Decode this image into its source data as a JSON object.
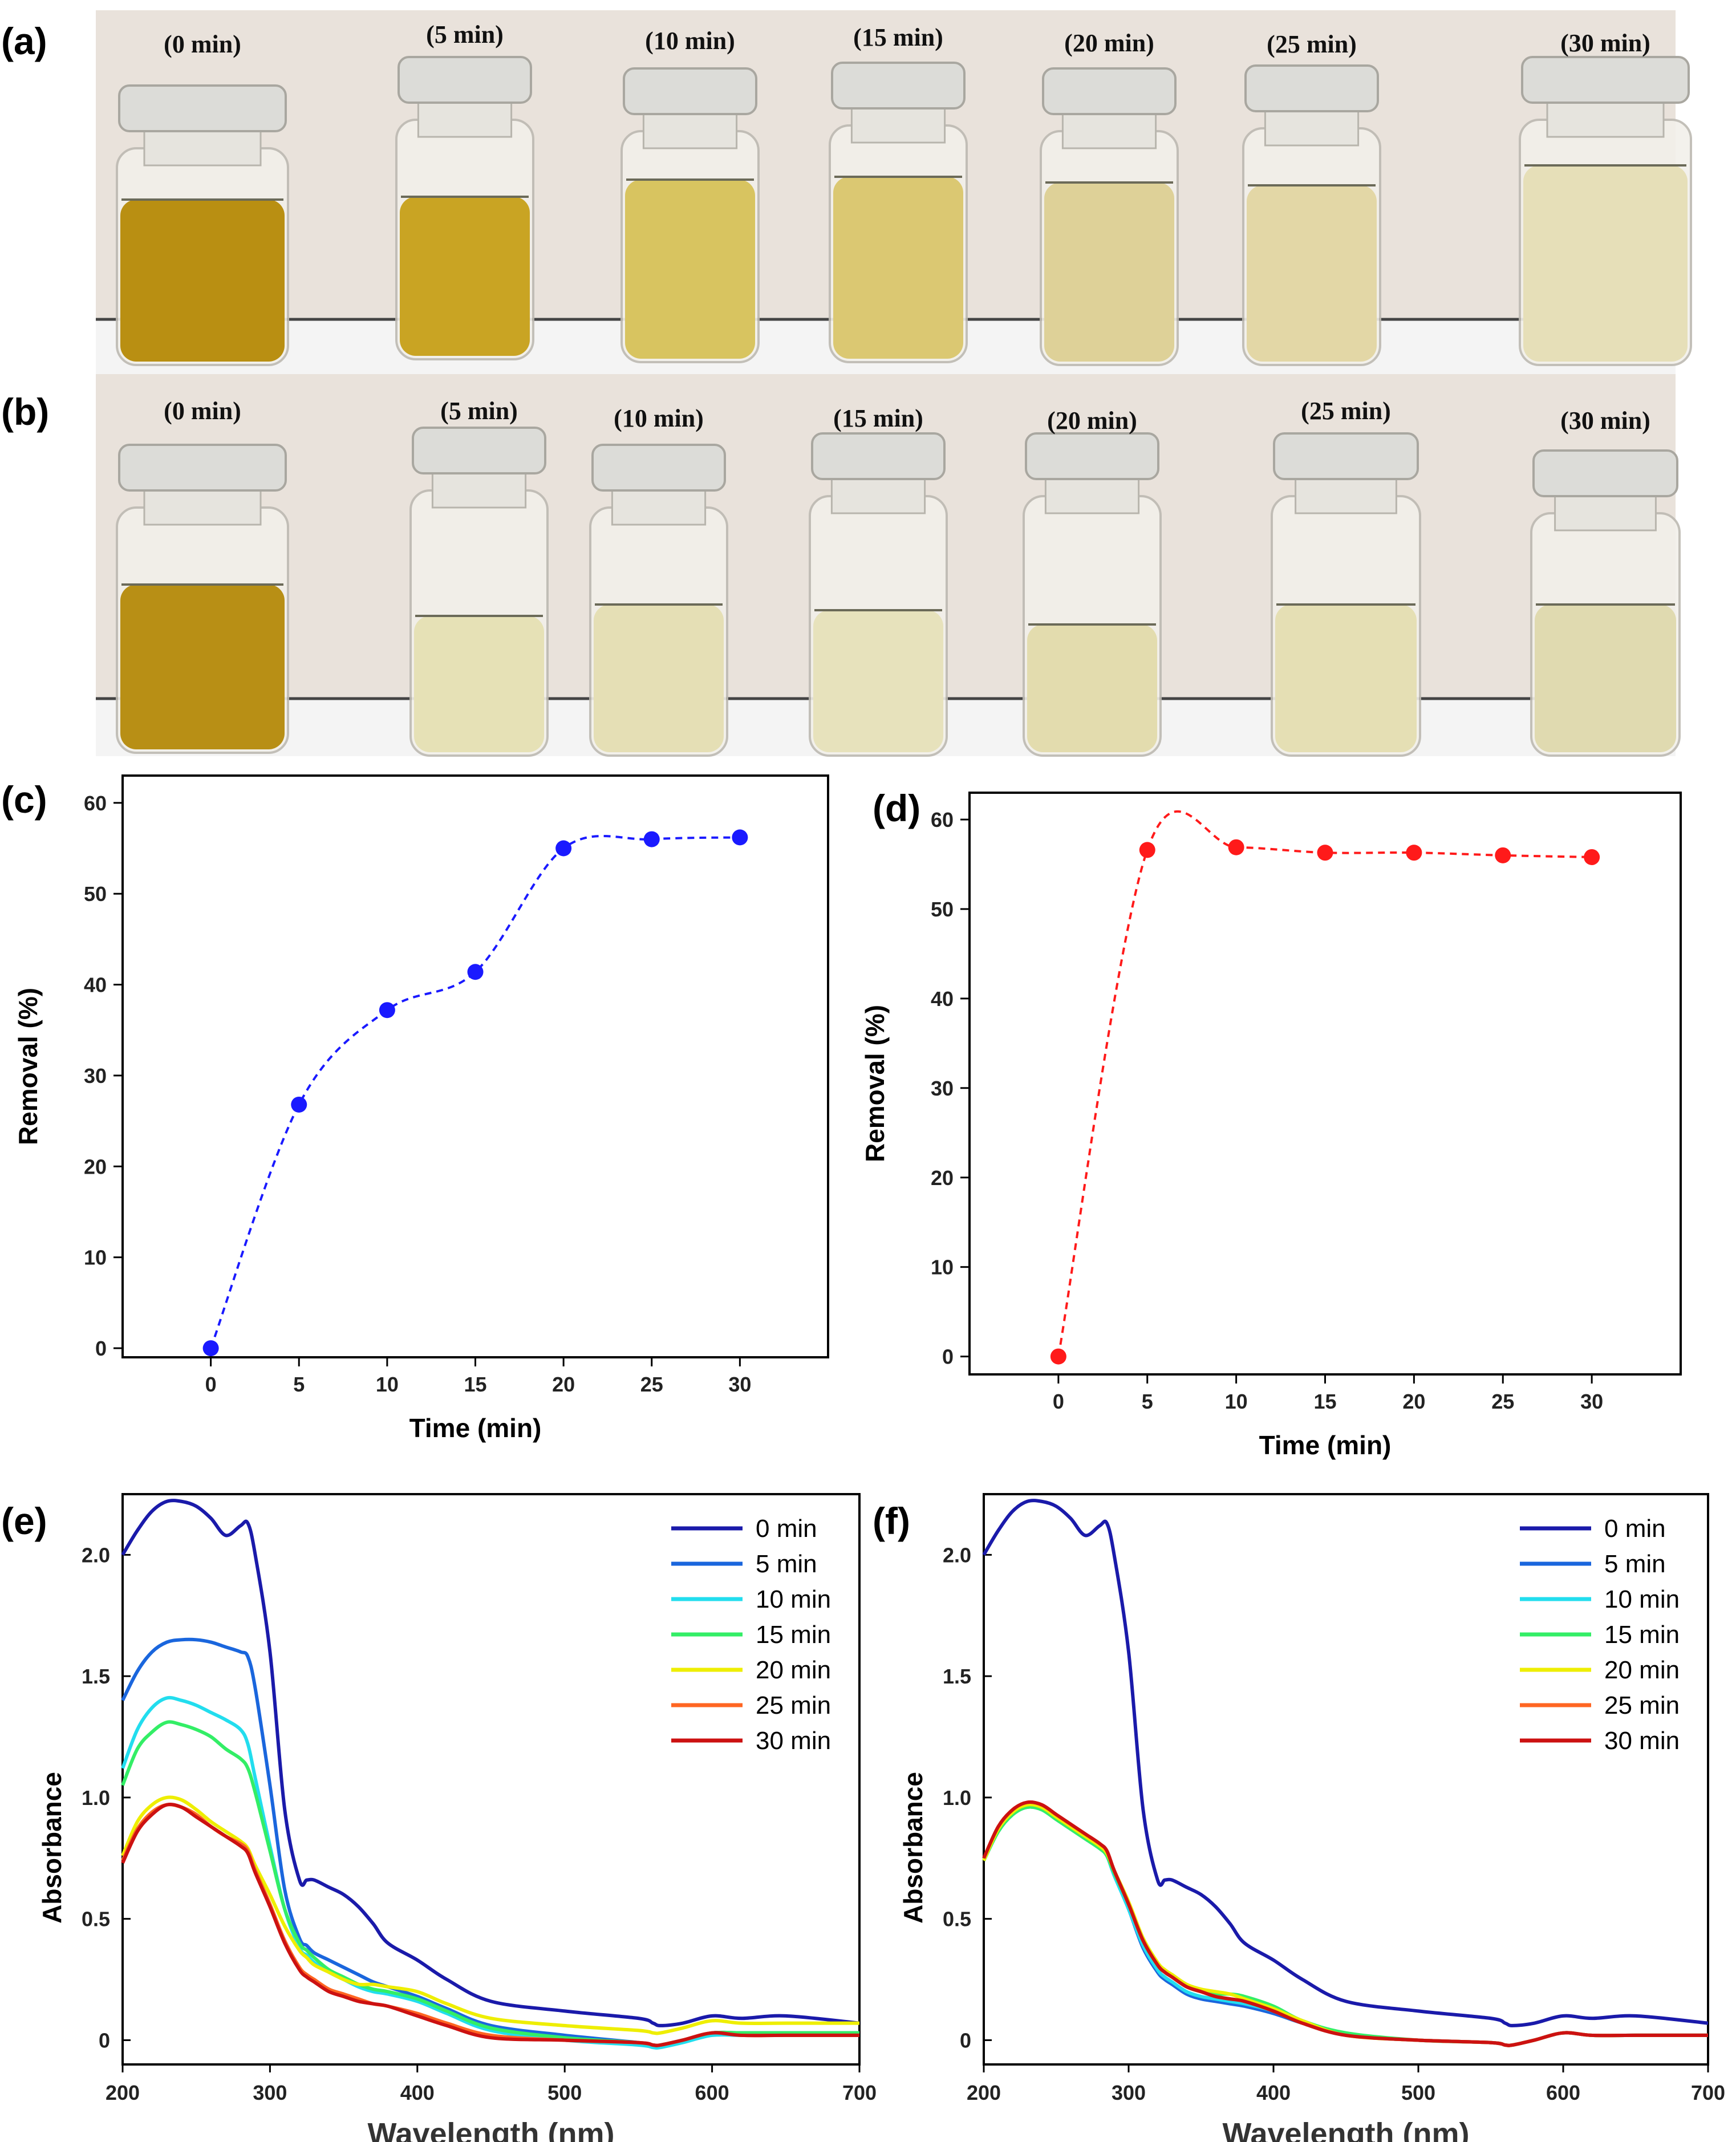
{
  "panel_labels": {
    "a": "(a)",
    "b": "(b)",
    "c": "(c)",
    "d": "(d)",
    "e": "(e)",
    "f": "(f)"
  },
  "colors": {
    "photo_bg": "#e9e2db",
    "shelf": "#f4f4f4",
    "cap": "#dcdcd8",
    "liquid_a": [
      "#b98f12",
      "#c9a423",
      "#d8c460",
      "#dbc872",
      "#ded198",
      "#e3d7a6",
      "#e6dfb8"
    ],
    "liquid_b": [
      "#b88f15",
      "#e6e1b6",
      "#e5dfb5",
      "#e7e2bc",
      "#e3dcae",
      "#e5dfb4",
      "#e0dab0"
    ],
    "series_c": "#1a1aff",
    "series_d": "#ff1a1a"
  },
  "photo_a": {
    "vials": [
      "(0 min)",
      "(5 min)",
      "(10 min)",
      "(15 min)",
      "(20 min)",
      "(25 min)",
      "(30 min)"
    ]
  },
  "photo_b": {
    "vials": [
      "(0 min)",
      "(5 min)",
      "(10 min)",
      "(15 min)",
      "(20 min)",
      "(25 min)",
      "(30 min)"
    ]
  },
  "chart_data": [
    {
      "panel": "(c)",
      "type": "scatter",
      "title": "",
      "xlabel": "Time (min)",
      "ylabel": "Removal (%)",
      "x": [
        0,
        5,
        10,
        15,
        20,
        25,
        30
      ],
      "y": [
        0,
        26.8,
        37.2,
        41.4,
        55.0,
        56.0,
        56.2
      ],
      "xlim": [
        -5,
        35
      ],
      "ylim": [
        -1,
        63
      ],
      "xticks": [
        0,
        5,
        10,
        15,
        20,
        25,
        30
      ],
      "yticks": [
        0,
        10,
        20,
        30,
        40,
        50,
        60
      ],
      "line": "dashed smooth spline",
      "color": "#1a1aff"
    },
    {
      "panel": "(d)",
      "type": "scatter",
      "title": "",
      "xlabel": "Time (min)",
      "ylabel": "Removal (%)",
      "x": [
        0,
        5,
        10,
        15,
        20,
        25,
        30
      ],
      "y": [
        0,
        56.6,
        56.9,
        56.3,
        56.3,
        56.0,
        55.8
      ],
      "xlim": [
        -5,
        35
      ],
      "ylim": [
        -2,
        63
      ],
      "xticks": [
        0,
        5,
        10,
        15,
        20,
        25,
        30
      ],
      "yticks": [
        0,
        10,
        20,
        30,
        40,
        50,
        60
      ],
      "line": "dashed smooth spline",
      "color": "#ff1a1a"
    },
    {
      "panel": "(e)",
      "type": "line",
      "xlabel": "Wavelength (nm)",
      "ylabel": "Absorbance",
      "xlim": [
        200,
        700
      ],
      "ylim": [
        -0.1,
        2.25
      ],
      "xticks": [
        200,
        300,
        400,
        500,
        600,
        700
      ],
      "yticks": [
        0,
        0.5,
        1.0,
        1.5,
        2.0
      ],
      "ytick_labels": [
        "0",
        "0.5",
        "1.0",
        "1.5",
        "2.0"
      ],
      "legend_position": "top-right",
      "x": [
        200,
        210,
        220,
        230,
        240,
        250,
        260,
        270,
        280,
        285,
        290,
        300,
        310,
        320,
        325,
        330,
        340,
        350,
        360,
        370,
        380,
        400,
        420,
        450,
        500,
        550,
        560,
        565,
        580,
        600,
        620,
        650,
        700
      ],
      "series": [
        {
          "name": "0 min",
          "color": "#1a1aaa",
          "values": [
            2.0,
            2.1,
            2.18,
            2.22,
            2.22,
            2.2,
            2.15,
            2.08,
            2.12,
            2.13,
            2.0,
            1.6,
            0.95,
            0.66,
            0.66,
            0.66,
            0.63,
            0.6,
            0.55,
            0.48,
            0.4,
            0.33,
            0.25,
            0.16,
            0.12,
            0.09,
            0.07,
            0.06,
            0.07,
            0.1,
            0.09,
            0.1,
            0.07
          ]
        },
        {
          "name": "5 min",
          "color": "#1a66dd",
          "values": [
            1.4,
            1.52,
            1.6,
            1.64,
            1.65,
            1.65,
            1.64,
            1.62,
            1.6,
            1.58,
            1.45,
            1.05,
            0.62,
            0.42,
            0.39,
            0.36,
            0.33,
            0.3,
            0.27,
            0.24,
            0.22,
            0.18,
            0.13,
            0.06,
            0.02,
            -0.01,
            -0.02,
            -0.02,
            0.0,
            0.03,
            0.03,
            0.03,
            0.03
          ]
        },
        {
          "name": "10 min",
          "color": "#22ddee",
          "values": [
            1.12,
            1.28,
            1.37,
            1.41,
            1.4,
            1.38,
            1.35,
            1.32,
            1.28,
            1.22,
            1.08,
            0.8,
            0.54,
            0.38,
            0.35,
            0.32,
            0.28,
            0.25,
            0.22,
            0.2,
            0.19,
            0.16,
            0.11,
            0.04,
            0.0,
            -0.02,
            -0.03,
            -0.03,
            -0.01,
            0.02,
            0.02,
            0.02,
            0.02
          ]
        },
        {
          "name": "15 min",
          "color": "#33ee66",
          "values": [
            1.05,
            1.2,
            1.27,
            1.31,
            1.3,
            1.28,
            1.25,
            1.2,
            1.16,
            1.12,
            1.02,
            0.78,
            0.54,
            0.4,
            0.37,
            0.34,
            0.29,
            0.26,
            0.23,
            0.21,
            0.2,
            0.17,
            0.12,
            0.05,
            0.01,
            -0.01,
            -0.02,
            -0.02,
            0.0,
            0.03,
            0.03,
            0.03,
            0.03
          ]
        },
        {
          "name": "20 min",
          "color": "#eeee00",
          "values": [
            0.76,
            0.9,
            0.97,
            1.0,
            0.99,
            0.95,
            0.9,
            0.86,
            0.82,
            0.79,
            0.72,
            0.6,
            0.47,
            0.37,
            0.34,
            0.31,
            0.28,
            0.25,
            0.23,
            0.23,
            0.22,
            0.2,
            0.15,
            0.09,
            0.06,
            0.04,
            0.03,
            0.03,
            0.05,
            0.08,
            0.07,
            0.07,
            0.07
          ]
        },
        {
          "name": "25 min",
          "color": "#ff6622",
          "values": [
            0.74,
            0.87,
            0.94,
            0.97,
            0.96,
            0.93,
            0.88,
            0.84,
            0.81,
            0.78,
            0.7,
            0.56,
            0.41,
            0.3,
            0.27,
            0.25,
            0.21,
            0.19,
            0.17,
            0.15,
            0.14,
            0.11,
            0.07,
            0.02,
            0.0,
            -0.01,
            -0.02,
            -0.02,
            0.0,
            0.03,
            0.02,
            0.02,
            0.02
          ]
        },
        {
          "name": "30 min",
          "color": "#cc1111",
          "values": [
            0.73,
            0.86,
            0.93,
            0.97,
            0.96,
            0.92,
            0.88,
            0.84,
            0.8,
            0.77,
            0.69,
            0.55,
            0.4,
            0.29,
            0.26,
            0.24,
            0.2,
            0.18,
            0.16,
            0.15,
            0.14,
            0.1,
            0.06,
            0.01,
            0.0,
            -0.01,
            -0.02,
            -0.02,
            0.0,
            0.03,
            0.02,
            0.02,
            0.02
          ]
        }
      ]
    },
    {
      "panel": "(f)",
      "type": "line",
      "xlabel": "Wavelength (nm)",
      "ylabel": "Absorbance",
      "xlim": [
        200,
        700
      ],
      "ylim": [
        -0.1,
        2.25
      ],
      "xticks": [
        200,
        300,
        400,
        500,
        600,
        700
      ],
      "yticks": [
        0,
        0.5,
        1.0,
        1.5,
        2.0
      ],
      "ytick_labels": [
        "0",
        "0.5",
        "1.0",
        "1.5",
        "2.0"
      ],
      "legend_position": "top-right",
      "x": [
        200,
        210,
        220,
        230,
        240,
        250,
        260,
        270,
        280,
        285,
        290,
        300,
        310,
        320,
        325,
        330,
        340,
        350,
        360,
        370,
        380,
        400,
        420,
        450,
        500,
        550,
        560,
        565,
        580,
        600,
        620,
        650,
        700
      ],
      "series": [
        {
          "name": "0 min",
          "color": "#1a1aaa",
          "values": [
            2.0,
            2.1,
            2.18,
            2.22,
            2.22,
            2.2,
            2.15,
            2.08,
            2.12,
            2.13,
            2.0,
            1.6,
            0.95,
            0.66,
            0.66,
            0.66,
            0.63,
            0.6,
            0.55,
            0.48,
            0.4,
            0.33,
            0.25,
            0.16,
            0.12,
            0.09,
            0.07,
            0.06,
            0.07,
            0.1,
            0.09,
            0.1,
            0.07
          ]
        },
        {
          "name": "5 min",
          "color": "#1a66dd",
          "values": [
            0.74,
            0.86,
            0.93,
            0.96,
            0.95,
            0.91,
            0.87,
            0.83,
            0.79,
            0.76,
            0.68,
            0.54,
            0.38,
            0.28,
            0.25,
            0.23,
            0.19,
            0.17,
            0.16,
            0.15,
            0.14,
            0.11,
            0.07,
            0.02,
            0.0,
            -0.01,
            -0.02,
            -0.02,
            0.0,
            0.03,
            0.02,
            0.02,
            0.02
          ]
        },
        {
          "name": "10 min",
          "color": "#22ddee",
          "values": [
            0.74,
            0.86,
            0.93,
            0.96,
            0.95,
            0.91,
            0.87,
            0.83,
            0.79,
            0.76,
            0.68,
            0.54,
            0.39,
            0.29,
            0.26,
            0.24,
            0.2,
            0.18,
            0.17,
            0.16,
            0.15,
            0.12,
            0.07,
            0.02,
            0.0,
            -0.01,
            -0.02,
            -0.02,
            0.0,
            0.03,
            0.02,
            0.02,
            0.02
          ]
        },
        {
          "name": "15 min",
          "color": "#33ee66",
          "values": [
            0.74,
            0.86,
            0.93,
            0.96,
            0.95,
            0.91,
            0.87,
            0.83,
            0.79,
            0.76,
            0.69,
            0.56,
            0.41,
            0.31,
            0.28,
            0.26,
            0.22,
            0.2,
            0.19,
            0.19,
            0.18,
            0.14,
            0.08,
            0.03,
            0.0,
            -0.01,
            -0.02,
            -0.02,
            0.0,
            0.03,
            0.02,
            0.02,
            0.02
          ]
        },
        {
          "name": "20 min",
          "color": "#eeee00",
          "values": [
            0.74,
            0.87,
            0.94,
            0.97,
            0.96,
            0.92,
            0.88,
            0.84,
            0.8,
            0.77,
            0.7,
            0.57,
            0.42,
            0.32,
            0.29,
            0.27,
            0.23,
            0.21,
            0.2,
            0.19,
            0.17,
            0.13,
            0.08,
            0.02,
            0.0,
            -0.01,
            -0.02,
            -0.02,
            0.0,
            0.03,
            0.02,
            0.02,
            0.02
          ]
        },
        {
          "name": "25 min",
          "color": "#ff6622",
          "values": [
            0.75,
            0.88,
            0.95,
            0.98,
            0.97,
            0.93,
            0.89,
            0.85,
            0.81,
            0.78,
            0.7,
            0.56,
            0.41,
            0.31,
            0.28,
            0.26,
            0.22,
            0.2,
            0.18,
            0.17,
            0.16,
            0.12,
            0.07,
            0.02,
            0.0,
            -0.01,
            -0.02,
            -0.02,
            0.0,
            0.03,
            0.02,
            0.02,
            0.02
          ]
        },
        {
          "name": "30 min",
          "color": "#cc1111",
          "values": [
            0.75,
            0.88,
            0.95,
            0.98,
            0.97,
            0.93,
            0.89,
            0.85,
            0.81,
            0.78,
            0.7,
            0.56,
            0.41,
            0.31,
            0.28,
            0.26,
            0.22,
            0.2,
            0.18,
            0.17,
            0.16,
            0.12,
            0.07,
            0.02,
            0.0,
            -0.01,
            -0.02,
            -0.02,
            0.0,
            0.03,
            0.02,
            0.02,
            0.02
          ]
        }
      ]
    }
  ]
}
